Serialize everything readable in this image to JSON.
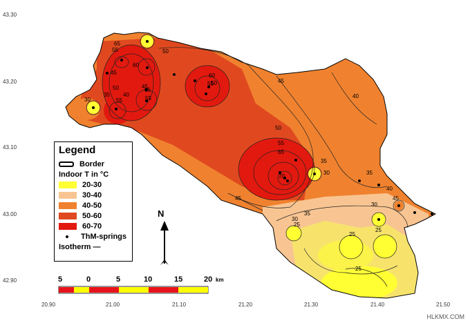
{
  "axes": {
    "lat_ticks": [
      "43.30",
      "43.20",
      "43.10",
      "43.00",
      "42.90"
    ],
    "lon_ticks": [
      "20.90",
      "21.00",
      "21.10",
      "21.20",
      "21.30",
      "21.40",
      "21.50"
    ]
  },
  "legend": {
    "title": "Legend",
    "border_label": "Border",
    "indoor_label": "Indoor T in °C",
    "classes": [
      {
        "label": "20-30",
        "color": "#ffff33"
      },
      {
        "label": "30-40",
        "color": "#f8c592"
      },
      {
        "label": "40-50",
        "color": "#f0822f"
      },
      {
        "label": "50-60",
        "color": "#e0491f"
      },
      {
        "label": "60-70",
        "color": "#e2190f"
      }
    ],
    "springs_label": "ThM-springs",
    "isotherm_label": "Isotherm —"
  },
  "north_label": "N",
  "scale": {
    "labels": [
      "5",
      "0",
      "5",
      "10",
      "15",
      "20"
    ],
    "unit": "km",
    "colors": [
      "#e8121a",
      "#ffff00"
    ]
  },
  "isotherm_labels": [
    "65",
    "55",
    "50",
    "60",
    "45",
    "35",
    "40",
    "45",
    "30",
    "55",
    "50",
    "65",
    "55",
    "60",
    "55",
    "50",
    "45",
    "40",
    "50",
    "55",
    "65",
    "70",
    "35",
    "30",
    "35",
    "40",
    "45",
    "30",
    "25",
    "25",
    "25",
    "25",
    "30",
    "35",
    "45"
  ],
  "credit": "HLKMX.COM"
}
